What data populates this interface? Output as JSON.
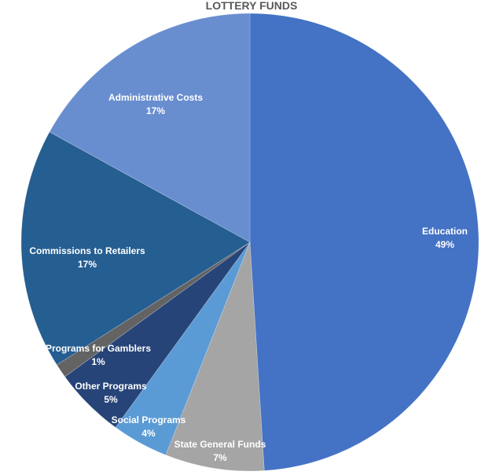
{
  "chart_data": {
    "type": "pie",
    "title": "LOTTERY FUNDS",
    "slices": [
      {
        "name": "Education",
        "value": 49,
        "label": "49%",
        "color": "#4472c4"
      },
      {
        "name": "State General Funds",
        "value": 7,
        "label": "7%",
        "color": "#a5a5a5"
      },
      {
        "name": "Social Programs",
        "value": 4,
        "label": "4%",
        "color": "#5b9bd5"
      },
      {
        "name": "Other Programs",
        "value": 5,
        "label": "5%",
        "color": "#264478"
      },
      {
        "name": "Programs for Gamblers",
        "value": 1,
        "label": "1%",
        "color": "#636363"
      },
      {
        "name": "Commissions to Retailers",
        "value": 17,
        "label": "17%",
        "color": "#255e91"
      },
      {
        "name": "Administrative Costs",
        "value": 17,
        "label": "17%",
        "color": "#698ed0"
      }
    ]
  }
}
